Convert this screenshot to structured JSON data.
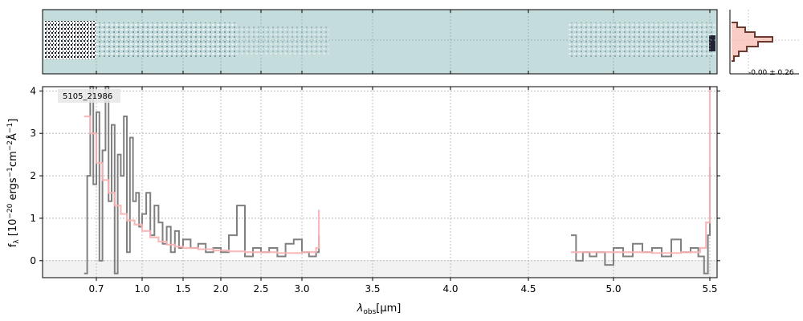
{
  "chart_data": [
    {
      "type": "image",
      "panel": "2d-spectrum",
      "background_color": "#c5dcdc",
      "grid": true
    },
    {
      "type": "line",
      "panel": "1d-spectrum",
      "annotation": "5105_21986",
      "xlabel_main": "λ",
      "xlabel_sub": "obs",
      "xlabel_unit": "[μm]",
      "ylabel": "f_λ [10^-20 ergs^-1 cm^-2 Å^-1]",
      "ylabel_parts": {
        "f": "f",
        "sub": "λ",
        "a": " [10",
        "e1": "−20",
        "b": " ergs",
        "e2": "−1",
        "c": "cm",
        "e3": "−2",
        "d": "Å",
        "e4": "−1",
        "e": "]"
      },
      "x_scale": "nonlinear (segmented)",
      "x_ticks": [
        "0.7",
        "1.0",
        "1.5",
        "2.0",
        "2.5",
        "3.0",
        "3.5",
        "4.0",
        "4.5",
        "5.0",
        "5.5"
      ],
      "y_ticks": [
        "0",
        "1",
        "2",
        "3",
        "4"
      ],
      "ylim": [
        -0.4,
        4.1
      ],
      "grid": true,
      "series": [
        {
          "color": "#808080",
          "segments": [
            {
              "x": [
                0.62,
                0.64,
                0.66,
                0.68,
                0.7,
                0.72,
                0.74,
                0.76,
                0.78,
                0.8,
                0.82,
                0.84,
                0.86,
                0.88,
                0.9,
                0.92,
                0.94,
                0.96,
                0.98,
                1.0,
                1.05,
                1.1,
                1.15,
                1.2,
                1.25,
                1.3,
                1.35,
                1.4,
                1.45,
                1.5,
                1.6,
                1.7,
                1.8,
                1.9,
                2.0,
                2.1,
                2.2,
                2.3,
                2.4,
                2.5,
                2.6,
                2.7,
                2.8,
                2.9,
                3.0,
                3.05,
                3.1,
                3.12
              ],
              "y": [
                -0.3,
                2.0,
                4.1,
                1.8,
                3.5,
                0.0,
                2.6,
                4.1,
                1.4,
                3.2,
                -0.3,
                2.5,
                2.0,
                3.4,
                0.2,
                2.9,
                1.4,
                1.6,
                0.8,
                1.1,
                1.6,
                0.6,
                1.3,
                0.9,
                0.4,
                0.8,
                0.2,
                0.7,
                0.3,
                0.5,
                0.3,
                0.4,
                0.2,
                0.3,
                0.2,
                0.6,
                1.3,
                0.1,
                0.3,
                0.2,
                0.3,
                0.1,
                0.4,
                0.5,
                0.2,
                0.1,
                0.2,
                0.6
              ]
            },
            {
              "x": [
                4.75,
                4.78,
                4.82,
                4.86,
                4.9,
                4.95,
                5.0,
                5.05,
                5.1,
                5.15,
                5.2,
                5.25,
                5.3,
                5.35,
                5.4,
                5.44,
                5.47,
                5.49,
                5.5
              ],
              "y": [
                0.6,
                0.0,
                0.2,
                0.1,
                0.2,
                -0.1,
                0.3,
                0.1,
                0.4,
                0.2,
                0.3,
                0.1,
                0.5,
                0.2,
                0.3,
                0.1,
                -0.3,
                0.6,
                2.2
              ]
            }
          ]
        },
        {
          "color": "#f7b3b3",
          "segments": [
            {
              "x": [
                0.62,
                0.66,
                0.7,
                0.74,
                0.78,
                0.82,
                0.86,
                0.9,
                0.95,
                1.0,
                1.1,
                1.2,
                1.3,
                1.4,
                1.5,
                1.7,
                1.9,
                2.1,
                2.3,
                2.5,
                2.7,
                2.9,
                3.0,
                3.1,
                3.12
              ],
              "y": [
                3.4,
                3.0,
                2.3,
                1.9,
                1.6,
                1.3,
                1.1,
                0.95,
                0.85,
                0.7,
                0.55,
                0.45,
                0.38,
                0.33,
                0.3,
                0.27,
                0.24,
                0.22,
                0.2,
                0.2,
                0.18,
                0.18,
                0.2,
                0.3,
                1.2
              ]
            },
            {
              "x": [
                4.75,
                4.9,
                5.05,
                5.2,
                5.35,
                5.45,
                5.48,
                5.5
              ],
              "y": [
                0.2,
                0.2,
                0.2,
                0.18,
                0.2,
                0.3,
                0.9,
                4.1
              ]
            }
          ]
        }
      ]
    },
    {
      "type": "histogram",
      "panel": "noise-distribution",
      "label": "-0.00 ± 0.26"
    }
  ]
}
